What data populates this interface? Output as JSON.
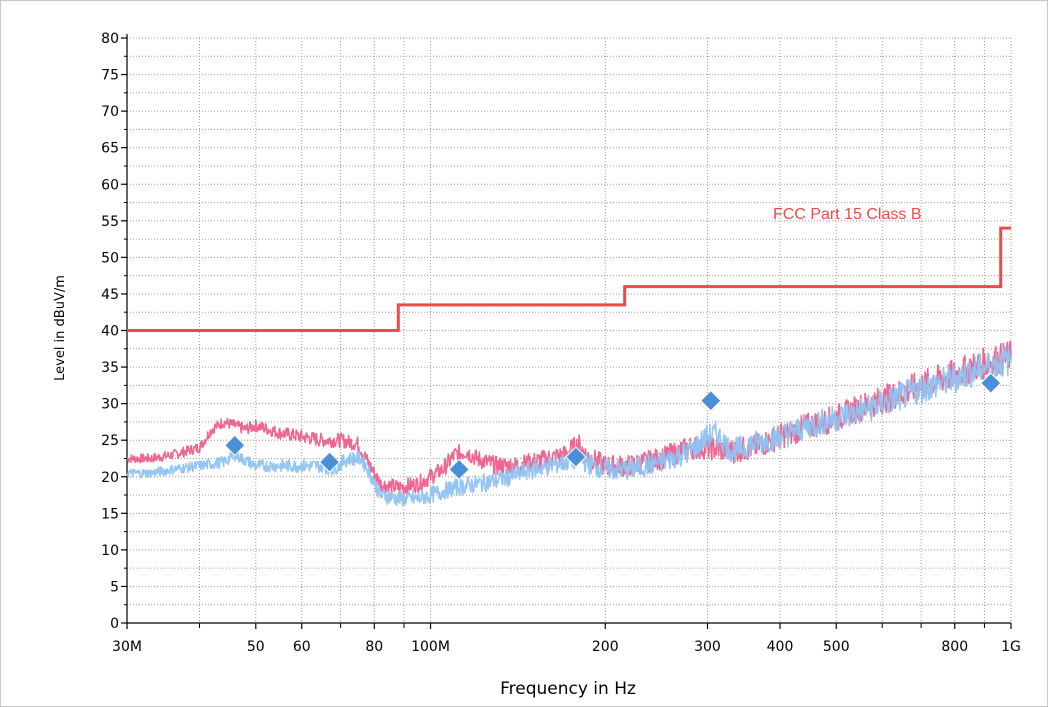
{
  "chart_data": {
    "type": "line",
    "xlabel": "Frequency in Hz",
    "ylabel": "Level in dBuV/m",
    "x_scale": "log",
    "xlim": [
      30000000,
      1000000000
    ],
    "ylim": [
      0,
      80
    ],
    "grid": true,
    "x_ticks": [
      {
        "value": 30000000,
        "label": "30M"
      },
      {
        "value": 50000000,
        "label": "50"
      },
      {
        "value": 60000000,
        "label": "60"
      },
      {
        "value": 80000000,
        "label": "80"
      },
      {
        "value": 100000000,
        "label": "100M"
      },
      {
        "value": 200000000,
        "label": "200"
      },
      {
        "value": 300000000,
        "label": "300"
      },
      {
        "value": 400000000,
        "label": "400"
      },
      {
        "value": 500000000,
        "label": "500"
      },
      {
        "value": 800000000,
        "label": "800"
      },
      {
        "value": 1000000000,
        "label": "1G"
      }
    ],
    "x_minor_ticks": [
      40000000,
      70000000,
      90000000,
      600000000,
      700000000,
      900000000
    ],
    "y_ticks": [
      0,
      5,
      10,
      15,
      20,
      25,
      30,
      35,
      40,
      45,
      50,
      55,
      60,
      65,
      70,
      75,
      80
    ],
    "limit_line": {
      "name": "FCC Part 15 Class B",
      "color": "#ef4a4a",
      "points": [
        [
          30000000,
          40
        ],
        [
          88000000,
          40
        ],
        [
          88000000,
          43.5
        ],
        [
          216000000,
          43.5
        ],
        [
          216000000,
          46
        ],
        [
          960000000,
          46
        ],
        [
          960000000,
          54
        ],
        [
          1000000000,
          54
        ]
      ]
    },
    "series": [
      {
        "color": "#ee5f8a",
        "points": [
          [
            30000000,
            22.5
          ],
          [
            33000000,
            22.5
          ],
          [
            36000000,
            23
          ],
          [
            40000000,
            24
          ],
          [
            42000000,
            26.5
          ],
          [
            44000000,
            27.5
          ],
          [
            46000000,
            27
          ],
          [
            48000000,
            26.5
          ],
          [
            50000000,
            27
          ],
          [
            55000000,
            26
          ],
          [
            60000000,
            25.5
          ],
          [
            65000000,
            25
          ],
          [
            70000000,
            25
          ],
          [
            75000000,
            24.5
          ],
          [
            78000000,
            22
          ],
          [
            82000000,
            19
          ],
          [
            88000000,
            18.5
          ],
          [
            95000000,
            19
          ],
          [
            100000000,
            20
          ],
          [
            105000000,
            21
          ],
          [
            110000000,
            23
          ],
          [
            115000000,
            23.5
          ],
          [
            120000000,
            22.5
          ],
          [
            130000000,
            21.5
          ],
          [
            140000000,
            21.5
          ],
          [
            150000000,
            22
          ],
          [
            160000000,
            22.5
          ],
          [
            170000000,
            23
          ],
          [
            180000000,
            24.5
          ],
          [
            185000000,
            23
          ],
          [
            200000000,
            21.5
          ],
          [
            220000000,
            21.5
          ],
          [
            250000000,
            22.5
          ],
          [
            280000000,
            24
          ],
          [
            300000000,
            24
          ],
          [
            330000000,
            23.5
          ],
          [
            360000000,
            24
          ],
          [
            400000000,
            25.5
          ],
          [
            450000000,
            27
          ],
          [
            500000000,
            28
          ],
          [
            550000000,
            29.5
          ],
          [
            600000000,
            30.5
          ],
          [
            700000000,
            32.5
          ],
          [
            800000000,
            34
          ],
          [
            900000000,
            35.5
          ],
          [
            1000000000,
            36.5
          ]
        ]
      },
      {
        "color": "#8fc3f2",
        "points": [
          [
            30000000,
            20.5
          ],
          [
            33000000,
            20.5
          ],
          [
            36000000,
            21
          ],
          [
            40000000,
            21.5
          ],
          [
            44000000,
            22
          ],
          [
            46000000,
            23
          ],
          [
            50000000,
            21.5
          ],
          [
            55000000,
            21.5
          ],
          [
            60000000,
            21.5
          ],
          [
            65000000,
            21.5
          ],
          [
            68000000,
            21
          ],
          [
            72000000,
            22.5
          ],
          [
            76000000,
            22.5
          ],
          [
            78000000,
            21
          ],
          [
            82000000,
            17.5
          ],
          [
            88000000,
            17
          ],
          [
            95000000,
            17
          ],
          [
            100000000,
            17.5
          ],
          [
            110000000,
            18.5
          ],
          [
            120000000,
            19
          ],
          [
            130000000,
            19.5
          ],
          [
            150000000,
            21
          ],
          [
            170000000,
            22
          ],
          [
            180000000,
            22.5
          ],
          [
            190000000,
            21.5
          ],
          [
            200000000,
            21
          ],
          [
            220000000,
            21
          ],
          [
            250000000,
            22
          ],
          [
            280000000,
            23.5
          ],
          [
            300000000,
            25.5
          ],
          [
            310000000,
            26
          ],
          [
            330000000,
            23.5
          ],
          [
            360000000,
            24.5
          ],
          [
            400000000,
            25.5
          ],
          [
            450000000,
            27
          ],
          [
            500000000,
            28
          ],
          [
            550000000,
            29
          ],
          [
            600000000,
            30
          ],
          [
            700000000,
            32
          ],
          [
            800000000,
            33.5
          ],
          [
            900000000,
            35
          ],
          [
            1000000000,
            36
          ]
        ]
      }
    ],
    "markers": {
      "color": "#4a90d9",
      "shape": "diamond",
      "points": [
        [
          46000000,
          24.3
        ],
        [
          67000000,
          22
        ],
        [
          112000000,
          21
        ],
        [
          178000000,
          22.7
        ],
        [
          304000000,
          30.4
        ],
        [
          923000000,
          32.8
        ]
      ]
    }
  }
}
